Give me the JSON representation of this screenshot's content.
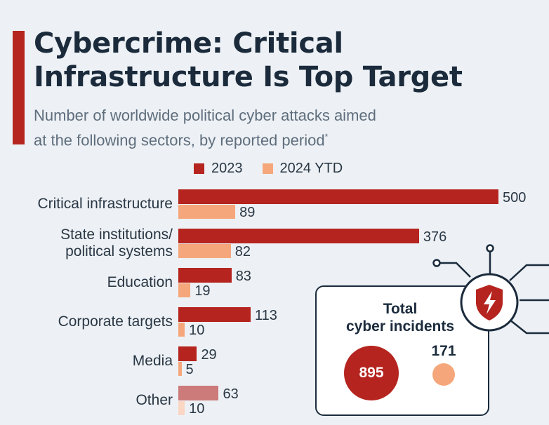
{
  "header": {
    "title_lines": [
      "Cybercrime: Critical",
      "Infrastructure Is Top Target"
    ],
    "subtitle_lines": [
      "Number of worldwide political cyber attacks aimed",
      "at the following sectors, by reported period"
    ],
    "subtitle_mark": "*"
  },
  "colors": {
    "accent": "#b5241f",
    "series_2023": "#b5241f",
    "series_2024": "#f5a77b",
    "other_2023": "#cc7a7a",
    "other_2024": "#fbd6c2"
  },
  "chart_data": {
    "type": "bar",
    "orientation": "horizontal",
    "categories": [
      [
        "Critical infrastructure"
      ],
      [
        "State institutions/",
        "political systems"
      ],
      [
        "Education"
      ],
      [
        "Corporate targets"
      ],
      [
        "Media"
      ],
      [
        "Other"
      ]
    ],
    "series": [
      {
        "name": "2023",
        "values": [
          500,
          376,
          83,
          113,
          29,
          63
        ]
      },
      {
        "name": "2024 YTD",
        "values": [
          89,
          82,
          19,
          10,
          5,
          10
        ]
      }
    ],
    "legend_position": "top",
    "grid": false
  },
  "summary": {
    "title_lines": [
      "Total",
      "cyber incidents"
    ],
    "total_2023": "895",
    "total_2024": "171"
  },
  "icons": {
    "summary_icon": "shield-lightning-icon"
  }
}
